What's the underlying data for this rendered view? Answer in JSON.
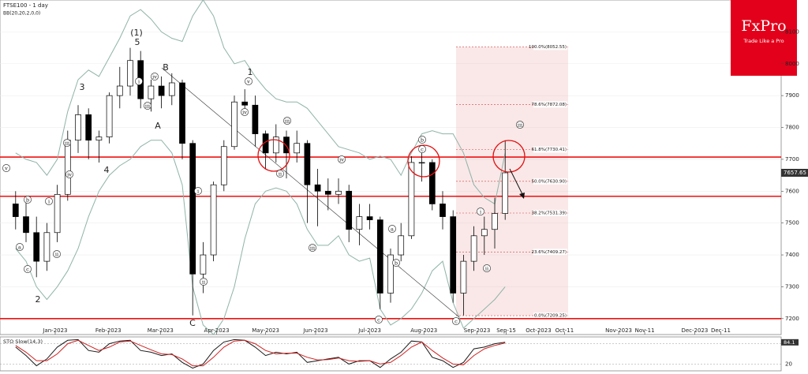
{
  "chart_data": {
    "type": "candlestick",
    "title": "FTSE100 - 1 day",
    "indicator": "BB(20,20,2,0,0)",
    "brand": {
      "name": "FxPro",
      "tagline": "Trade Like a Pro",
      "color": "#e3001b"
    },
    "open": [
      7560,
      7520,
      7470,
      7380,
      7470,
      7590,
      7760,
      7840,
      7760,
      7770,
      7900,
      7930,
      8010,
      7890,
      7930,
      7900,
      7940,
      7750,
      7340,
      7400,
      7620,
      7740,
      7880,
      7870,
      7780,
      7720,
      7770,
      7720,
      7750,
      7620,
      7600,
      7590,
      7600,
      7480,
      7520,
      7510,
      7280,
      7400,
      7460,
      7690,
      7690,
      7560,
      7520,
      7280,
      7380,
      7460,
      7480,
      7530
    ],
    "high": [
      7600,
      7580,
      7520,
      7500,
      7620,
      7790,
      7870,
      7860,
      7790,
      7910,
      7990,
      8050,
      8040,
      7950,
      7960,
      7970,
      7950,
      7760,
      7440,
      7630,
      7760,
      7900,
      7920,
      7900,
      7790,
      7810,
      7790,
      7790,
      7760,
      7670,
      7640,
      7640,
      7620,
      7560,
      7560,
      7520,
      7420,
      7500,
      7710,
      7720,
      7700,
      7600,
      7540,
      7400,
      7490,
      7520,
      7580,
      7760
    ],
    "low": [
      7480,
      7440,
      7330,
      7350,
      7440,
      7570,
      7720,
      7700,
      7690,
      7750,
      7860,
      7900,
      7860,
      7850,
      7860,
      7870,
      7700,
      7210,
      7280,
      7380,
      7600,
      7730,
      7840,
      7740,
      7670,
      7690,
      7640,
      7690,
      7500,
      7490,
      7540,
      7560,
      7440,
      7430,
      7480,
      7230,
      7250,
      7380,
      7450,
      7630,
      7540,
      7480,
      7250,
      7210,
      7350,
      7400,
      7420,
      7510
    ],
    "close": [
      7520,
      7470,
      7380,
      7470,
      7590,
      7760,
      7840,
      7760,
      7770,
      7900,
      7930,
      8010,
      7890,
      7930,
      7900,
      7940,
      7750,
      7340,
      7400,
      7620,
      7740,
      7880,
      7870,
      7780,
      7720,
      7770,
      7720,
      7750,
      7620,
      7600,
      7590,
      7600,
      7480,
      7520,
      7510,
      7280,
      7400,
      7460,
      7690,
      7690,
      7560,
      7520,
      7280,
      7380,
      7460,
      7480,
      7530,
      7657.65
    ],
    "bb_upper": [
      7720,
      7700,
      7690,
      7650,
      7700,
      7850,
      7950,
      7980,
      7960,
      8020,
      8080,
      8150,
      8170,
      8140,
      8100,
      8080,
      8070,
      8150,
      8200,
      8150,
      8050,
      8000,
      8010,
      7960,
      7920,
      7890,
      7880,
      7880,
      7860,
      7820,
      7780,
      7740,
      7730,
      7720,
      7700,
      7710,
      7700,
      7650,
      7720,
      7780,
      7790,
      7780,
      7780,
      7720,
      7620,
      7580,
      7560,
      7720
    ],
    "bb_lower": [
      7420,
      7380,
      7300,
      7260,
      7300,
      7350,
      7420,
      7520,
      7600,
      7650,
      7680,
      7700,
      7740,
      7760,
      7760,
      7720,
      7620,
      7300,
      7180,
      7150,
      7200,
      7300,
      7450,
      7560,
      7600,
      7610,
      7600,
      7560,
      7480,
      7430,
      7430,
      7460,
      7400,
      7380,
      7390,
      7230,
      7180,
      7200,
      7230,
      7280,
      7350,
      7380,
      7250,
      7170,
      7200,
      7230,
      7260,
      7300
    ],
    "up_color": "#ffffff",
    "down_color": "#000000",
    "band_color": "#8fb3a9",
    "xlim": [
      -1.5,
      73.5
    ],
    "xticks": [
      {
        "value": 3.8,
        "label": "Jan-2023"
      },
      {
        "value": 8.9,
        "label": "Feb-2023"
      },
      {
        "value": 13.9,
        "label": "Mar-2023"
      },
      {
        "value": 19.3,
        "label": "Apr-2023"
      },
      {
        "value": 24.0,
        "label": "May-2023"
      },
      {
        "value": 28.8,
        "label": "Jun-2023"
      },
      {
        "value": 34.0,
        "label": "Jul-2023"
      },
      {
        "value": 39.2,
        "label": "Aug-2023"
      },
      {
        "value": 44.3,
        "label": "Sep-2023"
      },
      {
        "value": 47.1,
        "label": "Sep-15"
      },
      {
        "value": 50.2,
        "label": "Oct-2023"
      },
      {
        "value": 52.7,
        "label": "Oct-11"
      },
      {
        "value": 57.9,
        "label": "Nov-2023"
      },
      {
        "value": 60.4,
        "label": "Nov-11"
      },
      {
        "value": 65.2,
        "label": "Dec-2023"
      },
      {
        "value": 67.7,
        "label": "Dec-11"
      }
    ],
    "ylim": [
      7150,
      8200
    ],
    "yticks": [
      7200,
      7300,
      7400,
      7500,
      7600,
      7700,
      7800,
      7900,
      8000,
      8100
    ],
    "levels": [
      7707,
      7584,
      7200
    ],
    "level_color": "#ee1111",
    "fibonacci": [
      {
        "value": 8052.55,
        "label": "100.0%(8052.55)"
      },
      {
        "value": 7872.08,
        "label": "78.6%(7872.08)"
      },
      {
        "value": 7730.41,
        "label": "61.8%(7730.41)"
      },
      {
        "value": 7630.9,
        "label": "50.0%(7630.90)"
      },
      {
        "value": 7531.39,
        "label": "38.2%(7531.39)"
      },
      {
        "value": 7409.27,
        "label": "23.6%(7409.27)"
      },
      {
        "value": 7209.25,
        "label": "0.0%(7209.25)"
      }
    ],
    "waves": [
      "(1)",
      "5",
      "3",
      "4",
      "1",
      "2",
      "A",
      "B",
      "C"
    ],
    "circled_waves": [
      "v",
      "iii",
      "iv",
      "ii",
      "a",
      "c",
      "b",
      "i",
      "iii",
      "i",
      "iv",
      "ii",
      "i",
      "v",
      "iv",
      "iii",
      "ii",
      "iv",
      "iii",
      "a",
      "b",
      "c",
      "b",
      "c",
      "i",
      "ii",
      "iii",
      "c"
    ],
    "oscillator": {
      "title": "STO Slow(14,3)",
      "ylim": [
        0,
        100
      ],
      "yticks": [
        20,
        80
      ],
      "main": [
        70,
        45,
        15,
        35,
        70,
        90,
        92,
        60,
        55,
        80,
        88,
        90,
        60,
        55,
        45,
        50,
        25,
        8,
        20,
        60,
        85,
        92,
        90,
        70,
        45,
        55,
        50,
        55,
        25,
        30,
        35,
        40,
        20,
        30,
        30,
        10,
        35,
        55,
        88,
        85,
        40,
        30,
        10,
        25,
        65,
        70,
        80,
        84.1
      ],
      "signal": [
        75,
        55,
        30,
        30,
        50,
        80,
        90,
        75,
        60,
        70,
        85,
        88,
        75,
        62,
        50,
        48,
        35,
        15,
        15,
        40,
        70,
        88,
        90,
        80,
        60,
        50,
        52,
        52,
        40,
        32,
        33,
        38,
        30,
        28,
        30,
        20,
        25,
        45,
        70,
        85,
        60,
        38,
        20,
        18,
        45,
        65,
        75,
        82
      ],
      "main_color": "#1a1a1a",
      "signal_color": "#d02020"
    }
  }
}
